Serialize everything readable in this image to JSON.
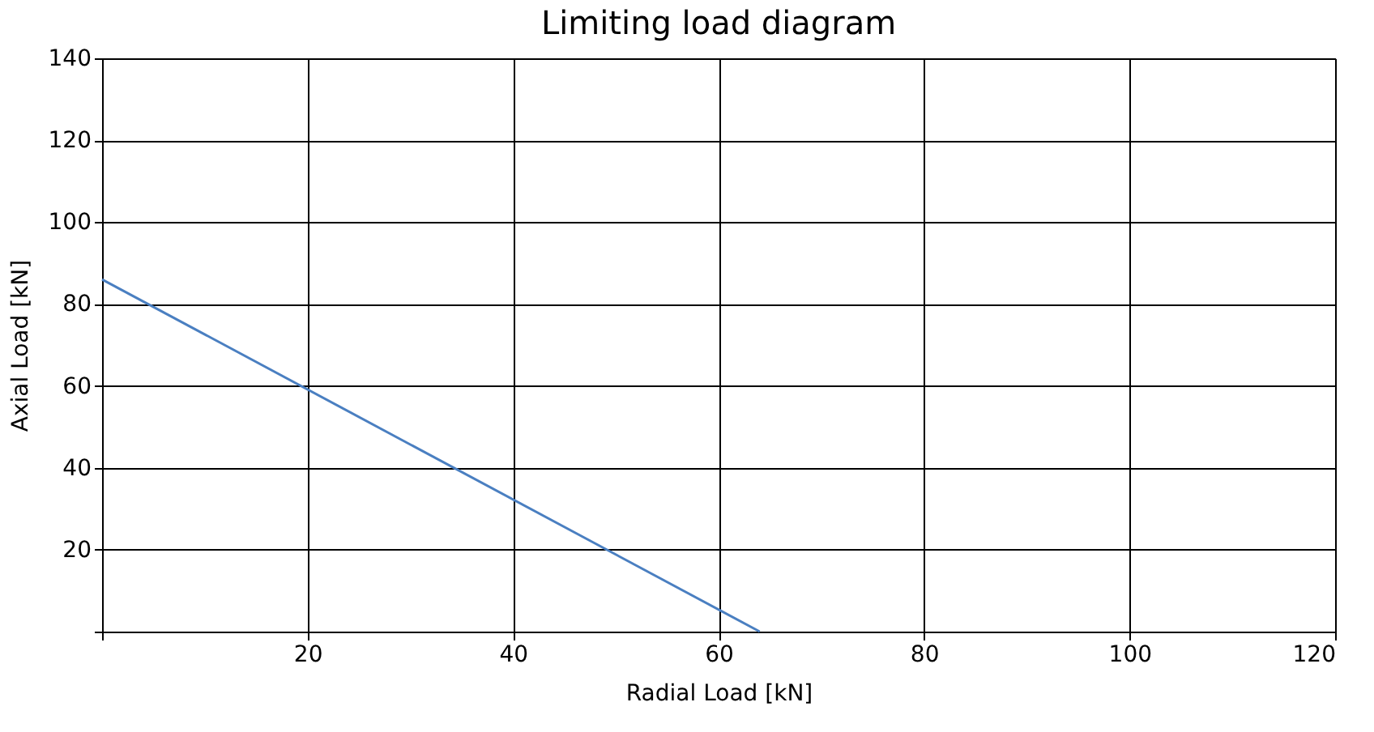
{
  "chart_data": {
    "type": "line",
    "title": "Limiting load diagram",
    "xlabel": "Radial Load [kN]",
    "ylabel": "Axial Load [kN]",
    "x": [
      0,
      64
    ],
    "series": [
      {
        "color": "#4a7fc1",
        "values": [
          86,
          0
        ]
      }
    ],
    "xlim": [
      0,
      120
    ],
    "ylim": [
      0,
      140
    ],
    "xticks": [
      {
        "value": 0,
        "label": null
      },
      20,
      40,
      60,
      80,
      100,
      120
    ],
    "yticks": [
      {
        "value": 0,
        "label": null
      },
      20,
      40,
      60,
      80,
      100,
      120,
      140
    ],
    "grid": true,
    "marker": "none",
    "line_style": "solid"
  }
}
